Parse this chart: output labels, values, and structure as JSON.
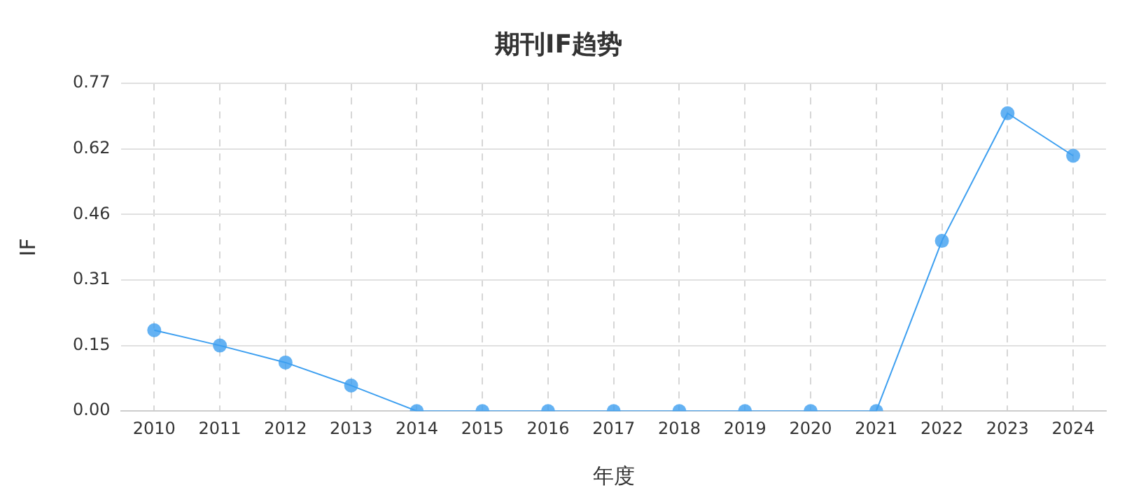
{
  "chart_data": {
    "type": "line",
    "title": "期刊IF趋势",
    "xlabel": "年度",
    "ylabel": "IF",
    "categories": [
      "2010",
      "2011",
      "2012",
      "2013",
      "2014",
      "2015",
      "2016",
      "2017",
      "2018",
      "2019",
      "2020",
      "2021",
      "2022",
      "2023",
      "2024"
    ],
    "series": [
      {
        "color": "#3d9ff0",
        "values": [
          0.19,
          0.154,
          0.114,
          0.06,
          0,
          0,
          0,
          0,
          0,
          0,
          0,
          0,
          0.4,
          0.7,
          0.6
        ]
      }
    ],
    "ylim": [
      0,
      0.77
    ],
    "yticks": [
      {
        "value": 0,
        "label": "0.00"
      },
      {
        "value": 0.154,
        "label": "0.15"
      },
      {
        "value": 0.308,
        "label": "0.31"
      },
      {
        "value": 0.462,
        "label": "0.46"
      },
      {
        "value": 0.616,
        "label": "0.62"
      },
      {
        "value": 0.77,
        "label": "0.77"
      }
    ],
    "grid": true,
    "marker": "circle",
    "line_style": "solid",
    "legend": false
  }
}
